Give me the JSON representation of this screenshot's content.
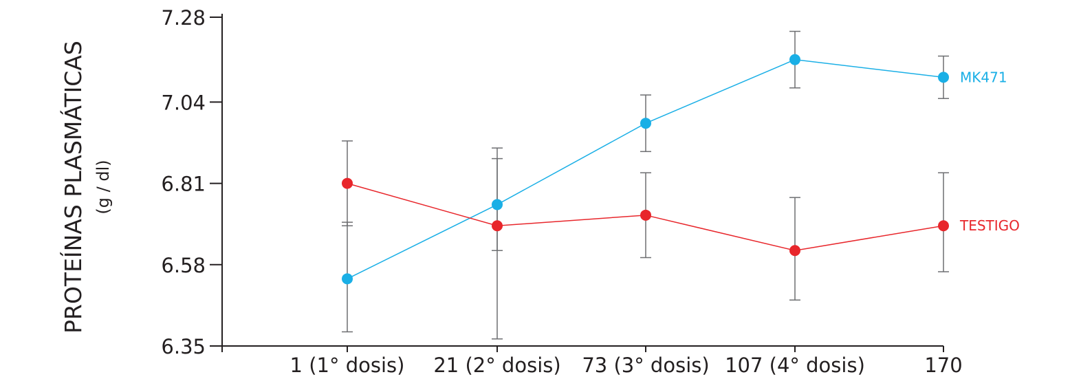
{
  "chart_data": {
    "type": "line",
    "title": "",
    "ylabel": "PROTEÍNAS PLASMÁTICAS",
    "ylabel_unit": "(g / dl)",
    "xlabel": "",
    "categories": [
      "1 (1° dosis)",
      "21 (2° dosis)",
      "73 (3° dosis)",
      "107 (4° dosis)",
      "170"
    ],
    "x": [
      1,
      21,
      73,
      107,
      170
    ],
    "ylim": [
      6.35,
      7.28
    ],
    "yticks": [
      6.35,
      6.58,
      6.81,
      7.04,
      7.28
    ],
    "ytick_labels": [
      "6.35",
      "6.58",
      "6.81",
      "7.04",
      "7.28"
    ],
    "grid": false,
    "legend": "inline labels at right end of each line",
    "series": [
      {
        "name": "MK471",
        "color": "#1aafe6",
        "values": [
          6.54,
          6.75,
          6.98,
          7.16,
          7.11
        ],
        "err_low": [
          6.39,
          6.37,
          6.9,
          7.08,
          7.05
        ],
        "err_high": [
          6.7,
          6.88,
          7.06,
          7.24,
          7.17
        ]
      },
      {
        "name": "TESTIGO",
        "color": "#e8262b",
        "values": [
          6.81,
          6.69,
          6.72,
          6.62,
          6.69
        ],
        "err_low": [
          6.69,
          6.62,
          6.6,
          6.48,
          6.56
        ],
        "err_high": [
          6.93,
          6.91,
          6.84,
          6.77,
          6.84
        ]
      }
    ]
  }
}
